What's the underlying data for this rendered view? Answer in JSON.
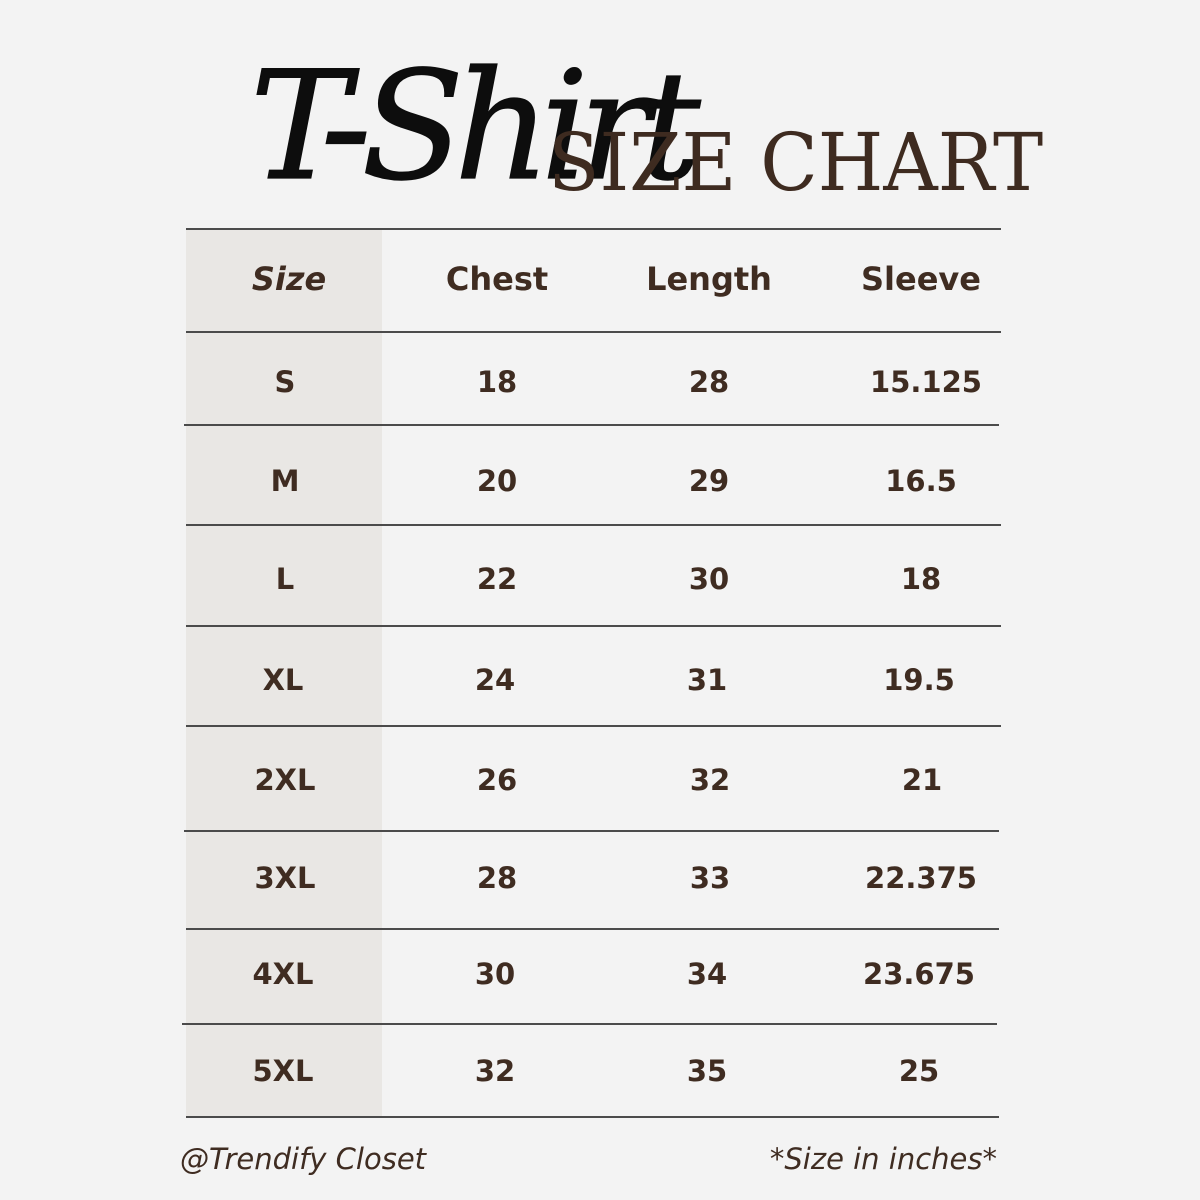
{
  "title": {
    "script": "T-Shirt",
    "main": "SIZE CHART"
  },
  "table": {
    "headers": [
      "Size",
      "Chest",
      "Length",
      "Sleeve"
    ],
    "rows": [
      [
        "S",
        "18",
        "28",
        "15.125"
      ],
      [
        "M",
        "20",
        "29",
        "16.5"
      ],
      [
        "L",
        "22",
        "30",
        "18"
      ],
      [
        "XL",
        "24",
        "31",
        "19.5"
      ],
      [
        "2XL",
        "26",
        "32",
        "21"
      ],
      [
        "3XL",
        "28",
        "33",
        "22.375"
      ],
      [
        "4XL",
        "30",
        "34",
        "23.675"
      ],
      [
        "5XL",
        "32",
        "35",
        "25"
      ]
    ]
  },
  "footer": {
    "brand": "@Trendify Closet",
    "note": "*Size in inches*"
  },
  "colors": {
    "background": "#f3f3f3",
    "text": "#3f2c21",
    "size_column": "#e9e7e4",
    "rule": "#4b4b4b"
  }
}
